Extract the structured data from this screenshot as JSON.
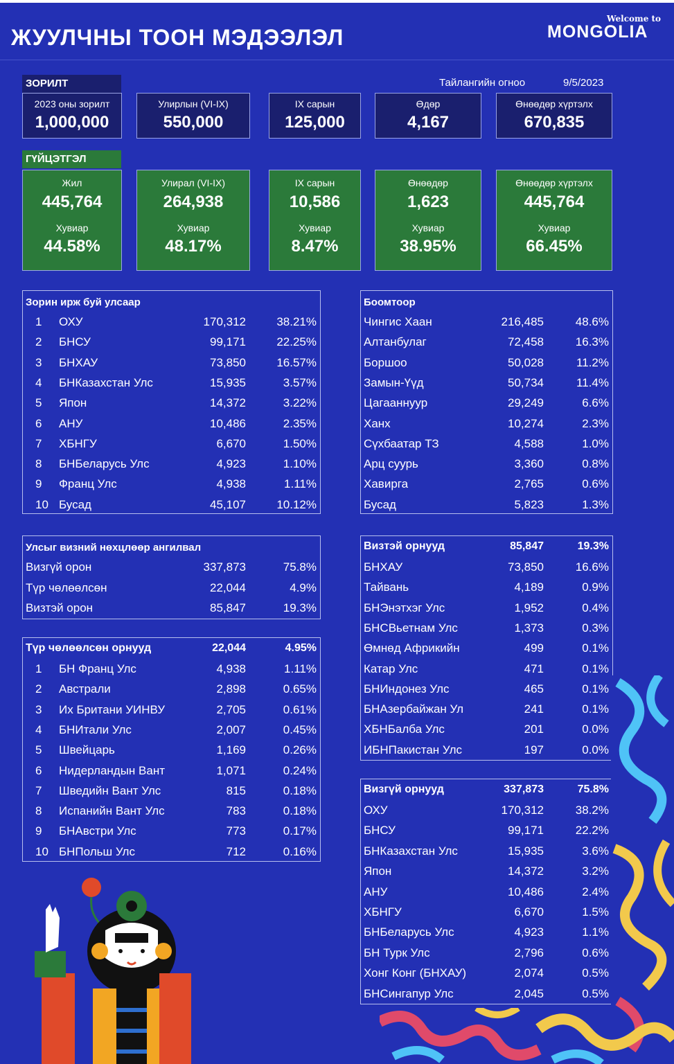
{
  "header": {
    "title": "ЖУУЛЧНЫ ТООН МЭДЭЭЛЭЛ",
    "brand_small": "Welcome to",
    "brand_big": "MONGOLIA"
  },
  "report": {
    "label": "Тайлангийн огноо",
    "date": "9/5/2023"
  },
  "target": {
    "label": "ЗОРИЛТ",
    "boxes": [
      {
        "caption": "2023 оны зорилт",
        "value": "1,000,000"
      },
      {
        "caption": "Улирлын (VI-IX)",
        "value": "550,000"
      },
      {
        "caption": "IX сарын",
        "value": "125,000"
      },
      {
        "caption": "Өдөр",
        "value": "4,167"
      },
      {
        "caption": "Өнөөдөр хүртэлх",
        "value": "670,835"
      }
    ]
  },
  "performance": {
    "label": "ГҮЙЦЭТГЭЛ",
    "boxes": [
      {
        "caption": "Жил",
        "value": "445,764",
        "pct_caption": "Хувиар",
        "pct": "44.58%"
      },
      {
        "caption": "Улирал (VI-IX)",
        "value": "264,938",
        "pct_caption": "Хувиар",
        "pct": "48.17%"
      },
      {
        "caption": "IX сарын",
        "value": "10,586",
        "pct_caption": "Хувиар",
        "pct": "8.47%"
      },
      {
        "caption": "Өнөөдөр",
        "value": "1,623",
        "pct_caption": "Хувиар",
        "pct": "38.95%"
      },
      {
        "caption": "Өнөөдөр хүртэлх",
        "value": "445,764",
        "pct_caption": "Хувиар",
        "pct": "66.45%"
      }
    ]
  },
  "by_country": {
    "title": "Зорин ирж буй улсаар",
    "rows": [
      [
        "1",
        "ОХУ",
        "170,312",
        "38.21%"
      ],
      [
        "2",
        "БНСУ",
        "99,171",
        "22.25%"
      ],
      [
        "3",
        "БНХАУ",
        "73,850",
        "16.57%"
      ],
      [
        "4",
        "БНКазахстан Улс",
        "15,935",
        "3.57%"
      ],
      [
        "5",
        "Япон",
        "14,372",
        "3.22%"
      ],
      [
        "6",
        "АНУ",
        "10,486",
        "2.35%"
      ],
      [
        "7",
        "ХБНГУ",
        "6,670",
        "1.50%"
      ],
      [
        "8",
        "БНБеларусь Улс",
        "4,923",
        "1.10%"
      ],
      [
        "9",
        "Франц Улс",
        "4,938",
        "1.11%"
      ],
      [
        "10",
        "Бусад",
        "45,107",
        "10.12%"
      ]
    ]
  },
  "border_ports": {
    "title": "Боомтоор",
    "rows": [
      [
        "Чингис Хаан",
        "216,485",
        "48.6%"
      ],
      [
        "Алтанбулаг",
        "72,458",
        "16.3%"
      ],
      [
        "Боршоо",
        "50,028",
        "11.2%"
      ],
      [
        "Замын-Үүд",
        "50,734",
        "11.4%"
      ],
      [
        "Цагааннуур",
        "29,249",
        "6.6%"
      ],
      [
        "Ханх",
        "10,274",
        "2.3%"
      ],
      [
        "Сүхбаатар ТЗ",
        "4,588",
        "1.0%"
      ],
      [
        "Арц суурь",
        "3,360",
        "0.8%"
      ],
      [
        "Хавирга",
        "2,765",
        "0.6%"
      ],
      [
        "Бусад",
        "5,823",
        "1.3%"
      ]
    ]
  },
  "visa_class": {
    "title": "Улсыг визний нөхцлөөр ангилвал",
    "rows": [
      [
        "Визгүй орон",
        "337,873",
        "75.8%"
      ],
      [
        "Түр чөлөөлсөн",
        "22,044",
        "4.9%"
      ],
      [
        "Визтэй орон",
        "85,847",
        "19.3%"
      ]
    ]
  },
  "visa_countries": {
    "title": "Визтэй орнууд",
    "total": "85,847",
    "total_pct": "19.3%",
    "rows": [
      [
        "БНХАУ",
        "73,850",
        "16.6%"
      ],
      [
        "Тайвань",
        "4,189",
        "0.9%"
      ],
      [
        "БНЭнэтхэг Улс",
        "1,952",
        "0.4%"
      ],
      [
        "БНСВьетнам Улс",
        "1,373",
        "0.3%"
      ],
      [
        "Өмнөд Африкийн",
        "499",
        "0.1%"
      ],
      [
        "Катар Улс",
        "471",
        "0.1%"
      ],
      [
        "БНИндонез Улс",
        "465",
        "0.1%"
      ],
      [
        "БНАзербайжан Ул",
        "241",
        "0.1%"
      ],
      [
        "ХБНБалба Улс",
        "201",
        "0.0%"
      ],
      [
        "ИБНПакистан Улс",
        "197",
        "0.0%"
      ]
    ]
  },
  "temp_exempt": {
    "title": "Түр чөлөөлсөн орнууд",
    "total": "22,044",
    "total_pct": "4.95%",
    "rows": [
      [
        "1",
        "БН Франц Улс",
        "4,938",
        "1.11%"
      ],
      [
        "2",
        "Австрали",
        "2,898",
        "0.65%"
      ],
      [
        "3",
        "Их Британи УИНВУ",
        "2,705",
        "0.61%"
      ],
      [
        "4",
        "БНИтали Улс",
        "2,007",
        "0.45%"
      ],
      [
        "5",
        "Швейцарь",
        "1,169",
        "0.26%"
      ],
      [
        "6",
        "Нидерландын Вант",
        "1,071",
        "0.24%"
      ],
      [
        "7",
        "Шведийн Вант Улс",
        "815",
        "0.18%"
      ],
      [
        "8",
        "Испанийн Вант Улс",
        "783",
        "0.18%"
      ],
      [
        "9",
        "БНАвстри Улс",
        "773",
        "0.17%"
      ],
      [
        "10",
        "БНПольш Улс",
        "712",
        "0.16%"
      ]
    ]
  },
  "visa_free": {
    "title": "Визгүй орнууд",
    "total": "337,873",
    "total_pct": "75.8%",
    "rows": [
      [
        "ОХУ",
        "170,312",
        "38.2%"
      ],
      [
        "БНСУ",
        "99,171",
        "22.2%"
      ],
      [
        "БНКазахстан Улс",
        "15,935",
        "3.6%"
      ],
      [
        "Япон",
        "14,372",
        "3.2%"
      ],
      [
        "АНУ",
        "10,486",
        "2.4%"
      ],
      [
        "ХБНГУ",
        "6,670",
        "1.5%"
      ],
      [
        "БНБеларусь Улс",
        "4,923",
        "1.1%"
      ],
      [
        "БН Турк Улс",
        "2,796",
        "0.6%"
      ],
      [
        "Хонг Конг (БНХАУ)",
        "2,074",
        "0.5%"
      ],
      [
        "БНСингапур Улс",
        "2,045",
        "0.5%"
      ]
    ]
  },
  "colors": {
    "background": "#2330b4",
    "target_box": "#1a1f6e",
    "performance_box": "#2b7a3a"
  }
}
